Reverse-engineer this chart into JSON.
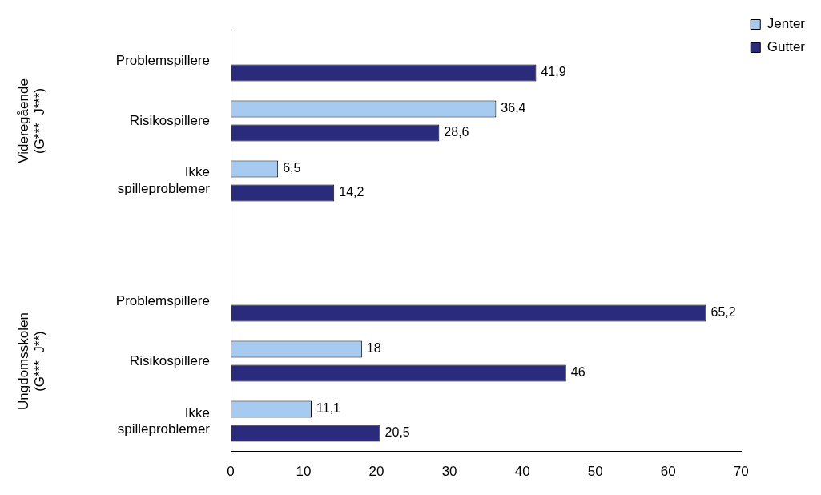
{
  "chart_data": {
    "type": "bar",
    "orientation": "horizontal",
    "categories": [
      "Problemspillere",
      "Risikospillere",
      "Ikke spilleproblemer",
      null,
      "Problemspillere",
      "Risikospillere",
      "Ikke spilleproblemer"
    ],
    "series": [
      {
        "name": "Jenter",
        "color": "#a6caf0",
        "values": [
          null,
          36.4,
          6.5,
          null,
          null,
          18,
          11.1
        ],
        "value_labels": [
          null,
          "36,4",
          "6,5",
          null,
          null,
          "18",
          "11,1"
        ]
      },
      {
        "name": "Gutter",
        "color": "#2b2b7d",
        "values": [
          41.9,
          28.6,
          14.2,
          null,
          65.2,
          46,
          20.5
        ],
        "value_labels": [
          "41,9",
          "28,6",
          "14,2",
          null,
          "65,2",
          "46",
          "20,5"
        ]
      }
    ],
    "xlim": [
      0,
      70
    ],
    "xticks": [
      0,
      10,
      20,
      30,
      40,
      50,
      60,
      70
    ],
    "annotations": [
      "Videregående\n(G***  J***)",
      "Ungdomsskolen\n(G***  J**)"
    ],
    "legend": "right",
    "grid": false
  }
}
